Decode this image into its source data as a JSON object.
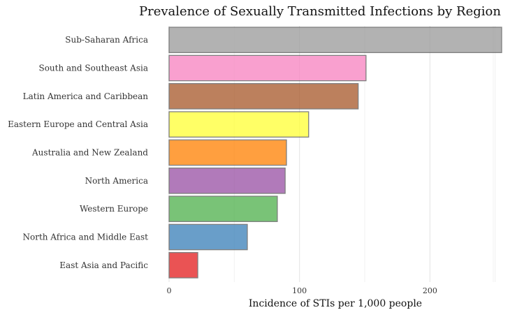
{
  "chart_data": {
    "type": "bar",
    "orientation": "horizontal",
    "title": "Prevalence of Sexually Transmitted Infections by Region",
    "xlabel": "Incidence of STIs per 1,000 people",
    "ylabel": "",
    "categories": [
      "Sub-Saharan Africa",
      "South and Southeast Asia",
      "Latin America and Caribbean",
      "Eastern Europe and Central Asia",
      "Australia and New Zealand",
      "North America",
      "Western Europe",
      "North Africa and Middle East",
      "East Asia and Pacific"
    ],
    "values": [
      255,
      151,
      145,
      107,
      90,
      89,
      83,
      60,
      22
    ],
    "colors": [
      "#999999",
      "#f781bf",
      "#a65628",
      "#ffff33",
      "#ff7f00",
      "#984ea3",
      "#4daf4a",
      "#377eb8",
      "#e41a1c"
    ],
    "xlim": [
      0,
      255
    ],
    "xticks": [
      0,
      100,
      200
    ],
    "grid": true,
    "legend": "none"
  }
}
